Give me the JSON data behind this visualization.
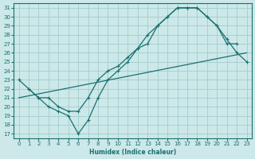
{
  "xlabel": "Humidex (Indice chaleur)",
  "bg_color": "#cce8e8",
  "grid_color": "#a8d0d0",
  "line_color": "#1a7070",
  "xlim": [
    -0.5,
    23.5
  ],
  "ylim": [
    16.5,
    31.5
  ],
  "yticks": [
    17,
    18,
    19,
    20,
    21,
    22,
    23,
    24,
    25,
    26,
    27,
    28,
    29,
    30,
    31
  ],
  "xticks": [
    0,
    1,
    2,
    3,
    4,
    5,
    6,
    7,
    8,
    9,
    10,
    11,
    12,
    13,
    14,
    15,
    16,
    17,
    18,
    19,
    20,
    21,
    22,
    23
  ],
  "line1_x": [
    1,
    2,
    3,
    4,
    5,
    6,
    7,
    8,
    9,
    10,
    11,
    12,
    13,
    14,
    15,
    16,
    17,
    18,
    19,
    20,
    21,
    22
  ],
  "line1_y": [
    22,
    21,
    20,
    19.5,
    19,
    17,
    18.5,
    21,
    23,
    24,
    25,
    26.5,
    27,
    29,
    30,
    31,
    31,
    31,
    30,
    29,
    27,
    27
  ],
  "line2_x": [
    0,
    1,
    2,
    3,
    4,
    5,
    6,
    7,
    8,
    9,
    10,
    11,
    12,
    13,
    14,
    15,
    16,
    17,
    18,
    19,
    20,
    21,
    22,
    23
  ],
  "line2_y": [
    23,
    22,
    21,
    21,
    20,
    19.5,
    19.5,
    21,
    23,
    24,
    24.5,
    25.5,
    26.5,
    28,
    29,
    30,
    31,
    31,
    31,
    30,
    29,
    27.5,
    26,
    25
  ],
  "line3_x": [
    0,
    23
  ],
  "line3_y": [
    21,
    26
  ]
}
